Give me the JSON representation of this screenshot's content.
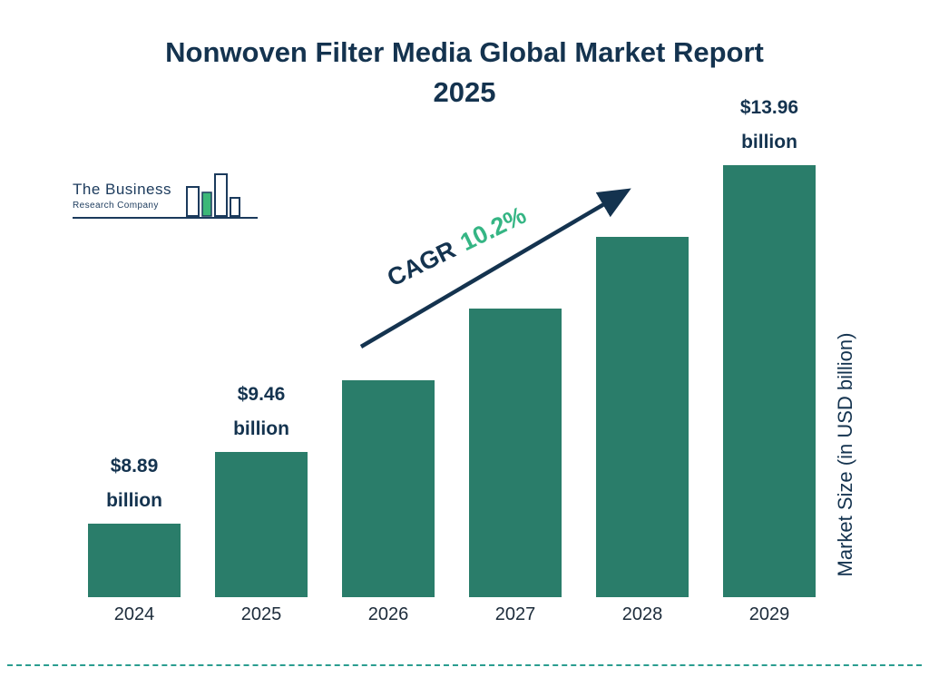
{
  "title": {
    "line1": "Nonwoven Filter Media Global Market Report",
    "line2": "2025"
  },
  "logo": {
    "line1": "The Business",
    "line2": "Research Company"
  },
  "chart_data": {
    "type": "bar",
    "title": "Nonwoven Filter Media Global Market Report 2025",
    "categories": [
      "2024",
      "2025",
      "2026",
      "2027",
      "2028",
      "2029"
    ],
    "values": [
      8.89,
      9.46,
      10.42,
      11.49,
      12.66,
      13.96
    ],
    "value_labels": [
      {
        "index": 0,
        "line1": "$8.89",
        "line2": "billion"
      },
      {
        "index": 1,
        "line1": "$9.46",
        "line2": "billion"
      },
      {
        "index": 5,
        "line1": "$13.96",
        "line2": "billion"
      }
    ],
    "xlabel": "",
    "ylabel": "Market Size (in USD billion)",
    "annotation": {
      "prefix": "CAGR",
      "value": "10.2%"
    },
    "legend": "none",
    "grid": false,
    "bar_color": "#2a7d6a",
    "accent_green": "#35b584",
    "navy": "#14334f",
    "divider_color": "#2a9d8f"
  }
}
